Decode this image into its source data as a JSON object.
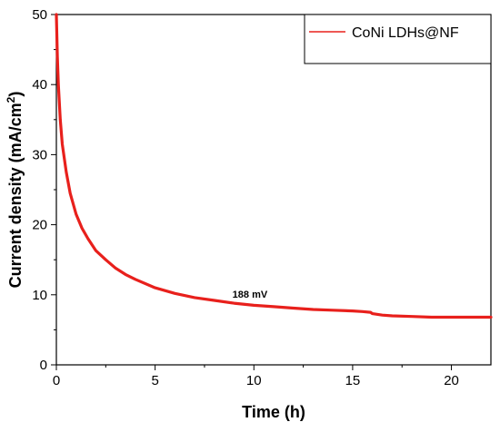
{
  "chart_data": {
    "type": "line",
    "xlabel": "Time (h)",
    "ylabel_main": "Current density (mA/cm",
    "ylabel_sup": "2",
    "ylabel_close": ")",
    "xlim": [
      0,
      22
    ],
    "ylim": [
      0,
      50
    ],
    "x_ticks": [
      0,
      5,
      10,
      15,
      20
    ],
    "y_ticks": [
      0,
      10,
      20,
      30,
      40,
      50
    ],
    "grid": false,
    "legend_position": "top-right",
    "annotation": {
      "text": "188 mV",
      "x": 9.8,
      "y": 9.6
    },
    "series": [
      {
        "name": "CoNi LDHs@NF",
        "color": "#e8201c",
        "x": [
          0,
          0.05,
          0.1,
          0.2,
          0.3,
          0.5,
          0.7,
          1.0,
          1.3,
          1.6,
          2.0,
          2.5,
          3.0,
          3.5,
          4.0,
          5.0,
          6.0,
          7.0,
          8.0,
          9.0,
          10.0,
          11.0,
          12.0,
          13.0,
          14.0,
          15.0,
          15.5,
          15.9,
          16.0,
          16.5,
          17.0,
          18.0,
          19.0,
          20.0,
          21.0,
          22.0
        ],
        "y": [
          50.0,
          44.0,
          40.0,
          35.0,
          31.5,
          27.5,
          24.5,
          21.5,
          19.5,
          18.0,
          16.3,
          15.0,
          13.8,
          12.9,
          12.2,
          11.0,
          10.2,
          9.6,
          9.2,
          8.8,
          8.5,
          8.3,
          8.1,
          7.9,
          7.8,
          7.7,
          7.6,
          7.5,
          7.3,
          7.1,
          7.0,
          6.9,
          6.8,
          6.8,
          6.8,
          6.8
        ]
      }
    ]
  }
}
